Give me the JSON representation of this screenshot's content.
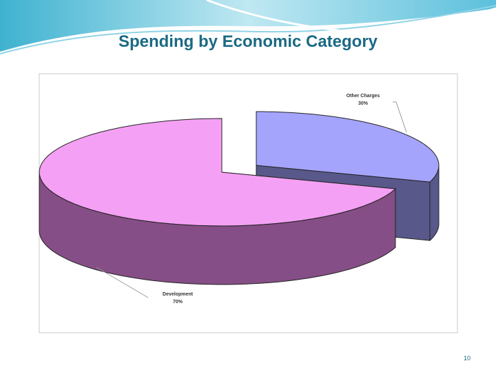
{
  "chart_data": {
    "type": "pie3d",
    "title": "Spending by Economic Category",
    "categories": [
      "Other Charges",
      "Development"
    ],
    "values": [
      30,
      70
    ],
    "value_labels": [
      "30%",
      "70%"
    ],
    "colors": [
      "#a4a4fc",
      "#f4a0f4"
    ],
    "side_colors": [
      "#58588a",
      "#864e86"
    ]
  },
  "slide_number": "10"
}
